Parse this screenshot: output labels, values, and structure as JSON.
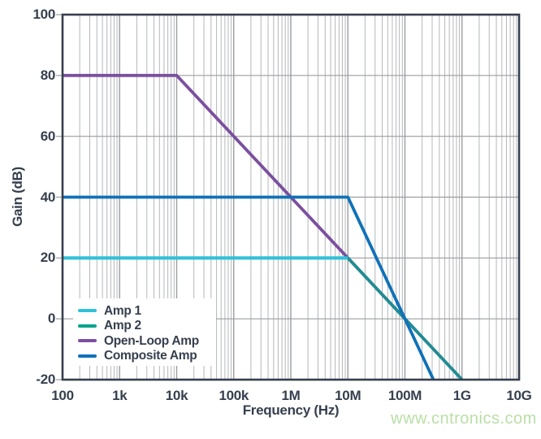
{
  "chart_data": {
    "type": "line",
    "title": "",
    "xlabel": "Frequency (Hz)",
    "ylabel": "Gain (dB)",
    "x_scale": "log",
    "x_range": [
      100,
      10000000000
    ],
    "y_range": [
      -20,
      100
    ],
    "x_ticks": [
      100,
      1000,
      10000,
      100000,
      1000000,
      10000000,
      100000000,
      1000000000,
      10000000000
    ],
    "x_tick_labels": [
      "100",
      "1k",
      "10k",
      "100k",
      "1M",
      "10M",
      "100M",
      "1G",
      "10G"
    ],
    "y_ticks": [
      100,
      80,
      60,
      40,
      20,
      0,
      -20
    ],
    "y_tick_labels": [
      "100",
      "80",
      "60",
      "40",
      "20",
      "0",
      "-20"
    ],
    "grid": "major-horizontal + log minor vertical",
    "legend_position": "lower-left",
    "series": [
      {
        "name": "Amp 1",
        "color": "#2fc2da",
        "opacity": 1,
        "points": [
          [
            100,
            20
          ],
          [
            10000000,
            20
          ]
        ]
      },
      {
        "name": "Amp 2",
        "color": "#00a28d",
        "opacity": 0.75,
        "points": [
          [
            100,
            20
          ],
          [
            10000000,
            20
          ],
          [
            1000000000,
            -20
          ]
        ]
      },
      {
        "name": "Open-Loop Amp",
        "color": "#7c4fa0",
        "opacity": 1,
        "points": [
          [
            100,
            80
          ],
          [
            10000,
            80
          ],
          [
            1000000000,
            -20
          ]
        ]
      },
      {
        "name": "Composite Amp",
        "color": "#1071b8",
        "opacity": 1,
        "points": [
          [
            100,
            40
          ],
          [
            10000000,
            40
          ],
          [
            100000000,
            0
          ],
          [
            316227766,
            -20
          ]
        ]
      }
    ],
    "draw_order": [
      "Open-Loop Amp",
      "Amp 2",
      "Amp 1",
      "Composite Amp"
    ],
    "colors": {
      "background": "#ffffff",
      "axis_border": "#363f4e",
      "text": "#363f4e",
      "grid_major": "#9b9da0",
      "grid_minor": "#b5b7ba",
      "watermark": "#b9dfa5"
    }
  },
  "watermark_text": "www.cntronics.com"
}
